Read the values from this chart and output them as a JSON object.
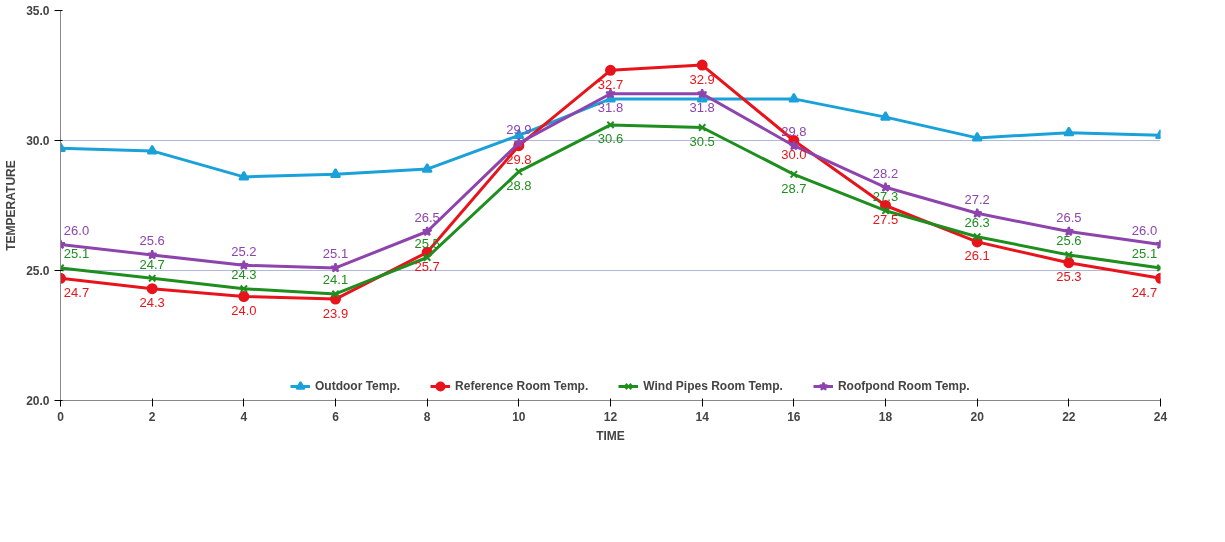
{
  "chart_data": {
    "type": "line",
    "xlabel": "TIME",
    "ylabel": "TEMPERATURE",
    "x": [
      0,
      2,
      4,
      6,
      8,
      10,
      12,
      14,
      16,
      18,
      20,
      22,
      24
    ],
    "xlim": [
      0,
      24
    ],
    "xticks": [
      0,
      2,
      4,
      6,
      8,
      10,
      12,
      14,
      16,
      18,
      20,
      22,
      24
    ],
    "ylim": [
      20,
      35
    ],
    "yticks": [
      {
        "value": 20,
        "label": "20.0"
      },
      {
        "value": 25,
        "label": "25.0"
      },
      {
        "value": 30,
        "label": "30.0"
      },
      {
        "value": 35,
        "label": "35.0"
      }
    ],
    "grid": "y",
    "legend": "bottom",
    "line_style": "solid",
    "series": [
      {
        "name": "Outdoor Temp.",
        "color": "#1ba1d9",
        "marker": "triangle",
        "values": [
          29.7,
          29.6,
          28.6,
          28.7,
          28.9,
          30.2,
          31.6,
          31.6,
          31.6,
          30.9,
          30.1,
          30.3,
          30.2
        ]
      },
      {
        "name": "Reference Room Temp.",
        "color": "#e8141b",
        "marker": "circle",
        "values": [
          24.7,
          24.3,
          24.0,
          23.9,
          25.7,
          29.8,
          32.7,
          32.9,
          30.0,
          27.5,
          26.1,
          25.3,
          24.7
        ],
        "value_labels": [
          "24.7",
          "24.3",
          "24.0",
          "23.9",
          "25.7",
          "29.8",
          "32.7",
          "32.9",
          "30.0",
          "27.5",
          "26.1",
          "25.3",
          "24.7"
        ]
      },
      {
        "name": "Wind Pipes Room Temp.",
        "color": "#1e8f1e",
        "marker": "cross",
        "values": [
          25.1,
          24.7,
          24.3,
          24.1,
          25.5,
          28.8,
          30.6,
          30.5,
          28.7,
          27.3,
          26.3,
          25.6,
          25.1
        ],
        "value_labels": [
          "25.1",
          "24.7",
          "24.3",
          "24.1",
          "25.5",
          "28.8",
          "30.6",
          "30.5",
          "28.7",
          "27.3",
          "26.3",
          "25.6",
          "25.1"
        ]
      },
      {
        "name": "Roofpond Room Temp.",
        "color": "#8e44ad",
        "marker": "star",
        "values": [
          26.0,
          25.6,
          25.2,
          25.1,
          26.5,
          29.9,
          31.8,
          31.8,
          29.8,
          28.2,
          27.2,
          26.5,
          26.0
        ],
        "value_labels": [
          "26.0",
          "25.6",
          "25.2",
          "25.1",
          "26.5",
          "29.9",
          "31.8",
          "31.8",
          "29.8",
          "28.2",
          "27.2",
          "26.5",
          "26.0"
        ]
      }
    ]
  }
}
